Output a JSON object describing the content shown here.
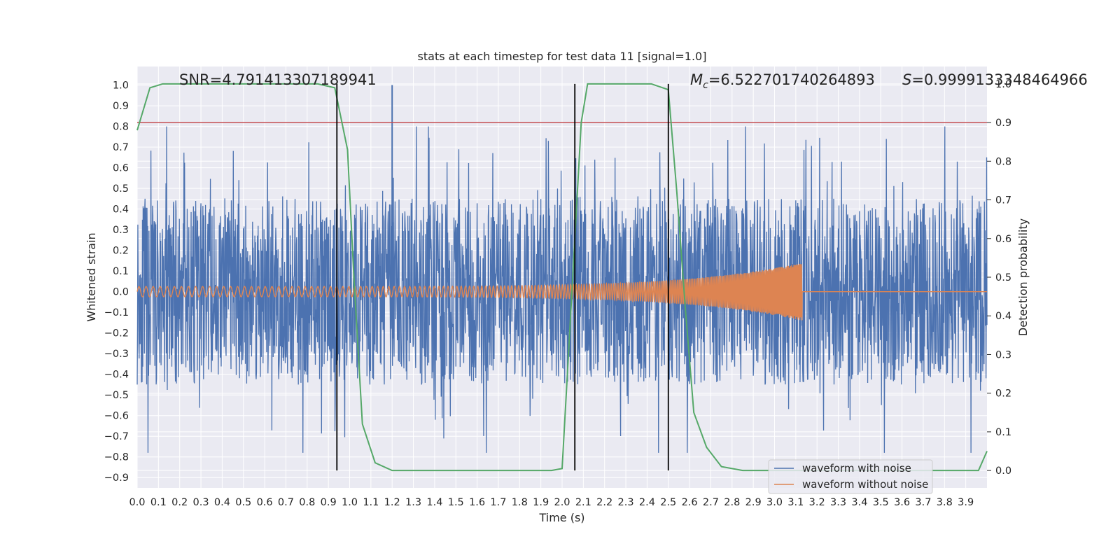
{
  "chart_data": {
    "type": "line",
    "title": "stats at each timestep for test data 11 [signal=1.0]",
    "xlabel": "Time (s)",
    "ylabel": "Whitened strain",
    "y2label": "Detection probability",
    "xlim": [
      0.0,
      4.0
    ],
    "ylim": [
      -0.95,
      1.09
    ],
    "y2lim": [
      -0.045,
      1.045
    ],
    "xticks": [
      "0.0",
      "0.1",
      "0.2",
      "0.3",
      "0.4",
      "0.5",
      "0.6",
      "0.7",
      "0.8",
      "0.9",
      "1.0",
      "1.1",
      "1.2",
      "1.3",
      "1.4",
      "1.5",
      "1.6",
      "1.7",
      "1.8",
      "1.9",
      "2.0",
      "2.1",
      "2.2",
      "2.3",
      "2.4",
      "2.5",
      "2.6",
      "2.7",
      "2.8",
      "2.9",
      "3.0",
      "3.1",
      "3.2",
      "3.3",
      "3.4",
      "3.5",
      "3.6",
      "3.7",
      "3.8",
      "3.9"
    ],
    "yticks": [
      "1.0",
      "0.9",
      "0.8",
      "0.7",
      "0.6",
      "0.5",
      "0.4",
      "0.3",
      "0.2",
      "0.1",
      "0.0",
      "-0.1",
      "-0.2",
      "-0.3",
      "-0.4",
      "-0.5",
      "-0.6",
      "-0.7",
      "-0.8",
      "-0.9"
    ],
    "y2ticks": [
      "1.0",
      "0.9",
      "0.8",
      "0.7",
      "0.6",
      "0.5",
      "0.4",
      "0.3",
      "0.2",
      "0.1",
      "0.0"
    ],
    "grid": true,
    "legend_position": "bottom-right",
    "annotations": {
      "snr": "SNR=4.791413307189941",
      "mc_symbol": "M",
      "mc_sub": "c",
      "mc_value": "=6.522701740264893",
      "s_symbol": "S",
      "s_value": "=0.9999133348464966"
    },
    "series": [
      {
        "name": "waveform with noise",
        "color": "#4c72b0",
        "axis": "left",
        "kind": "noise",
        "envelope_typical": 0.45,
        "envelope_peak": 1.0
      },
      {
        "name": "waveform without noise",
        "color": "#dd8452",
        "axis": "left",
        "kind": "chirp",
        "start_amplitude": 0.025,
        "end_amplitude": 0.14,
        "end_time": 3.13,
        "start_freq_hz": 30,
        "end_freq_hz": 200
      },
      {
        "color": "#55a868",
        "axis": "right",
        "kind": "detection_probability",
        "x": [
          0.0,
          0.06,
          0.12,
          0.2,
          0.3,
          0.5,
          0.7,
          0.85,
          0.93,
          0.99,
          1.02,
          1.06,
          1.12,
          1.2,
          1.4,
          1.6,
          1.8,
          1.95,
          2.0,
          2.03,
          2.06,
          2.09,
          2.12,
          2.2,
          2.3,
          2.42,
          2.5,
          2.54,
          2.58,
          2.62,
          2.68,
          2.75,
          2.85,
          3.0,
          3.2,
          3.4,
          3.6,
          3.8,
          3.96,
          4.0
        ],
        "y": [
          0.88,
          0.99,
          1.0,
          1.0,
          1.0,
          1.0,
          1.0,
          1.0,
          0.99,
          0.83,
          0.5,
          0.12,
          0.02,
          0.0,
          0.0,
          0.0,
          0.0,
          0.0,
          0.005,
          0.3,
          0.6,
          0.9,
          1.0,
          1.0,
          1.0,
          1.0,
          0.985,
          0.72,
          0.42,
          0.15,
          0.06,
          0.01,
          0.0,
          0.0,
          0.0,
          0.0,
          0.0,
          0.0,
          0.0,
          0.05
        ]
      },
      {
        "color": "#c44e52",
        "axis": "right",
        "kind": "threshold",
        "value": 0.9
      },
      {
        "color": "#000000",
        "axis": "right",
        "kind": "event_markers",
        "x": [
          0.94,
          2.06,
          2.5
        ],
        "y_from": 0.0,
        "y_to": 1.0
      }
    ]
  }
}
